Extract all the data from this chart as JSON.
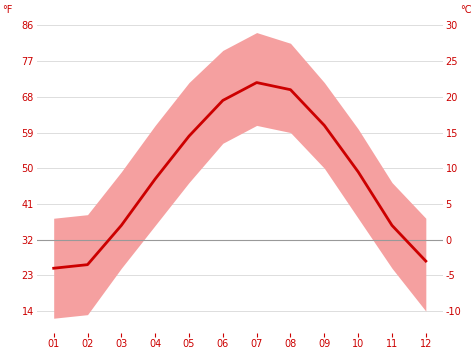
{
  "months": [
    1,
    2,
    3,
    4,
    5,
    6,
    7,
    8,
    9,
    10,
    11,
    12
  ],
  "month_labels": [
    "01",
    "02",
    "03",
    "04",
    "05",
    "06",
    "07",
    "08",
    "09",
    "10",
    "11",
    "12"
  ],
  "mean_c": [
    -4.0,
    -3.5,
    2.0,
    8.5,
    14.5,
    19.5,
    22.0,
    21.0,
    16.0,
    9.5,
    2.0,
    -3.0
  ],
  "low_c": [
    -11.0,
    -10.5,
    -4.0,
    2.0,
    8.0,
    13.5,
    16.0,
    15.0,
    10.0,
    3.0,
    -4.0,
    -10.0
  ],
  "high_c": [
    3.0,
    3.5,
    9.5,
    16.0,
    22.0,
    26.5,
    29.0,
    27.5,
    22.0,
    15.5,
    8.0,
    3.0
  ],
  "ylim_c": [
    -13,
    31
  ],
  "yticks_c": [
    -10,
    -5,
    0,
    5,
    10,
    15,
    20,
    25,
    30
  ],
  "yticks_f": [
    14,
    23,
    32,
    41,
    50,
    59,
    68,
    77,
    86
  ],
  "band_color": "#f5a0a0",
  "line_color": "#cc0000",
  "zero_line_color": "#999999",
  "background_color": "#ffffff",
  "grid_color": "#dddddd",
  "label_color": "#cc0000",
  "figsize": [
    4.74,
    3.55
  ],
  "dpi": 100
}
